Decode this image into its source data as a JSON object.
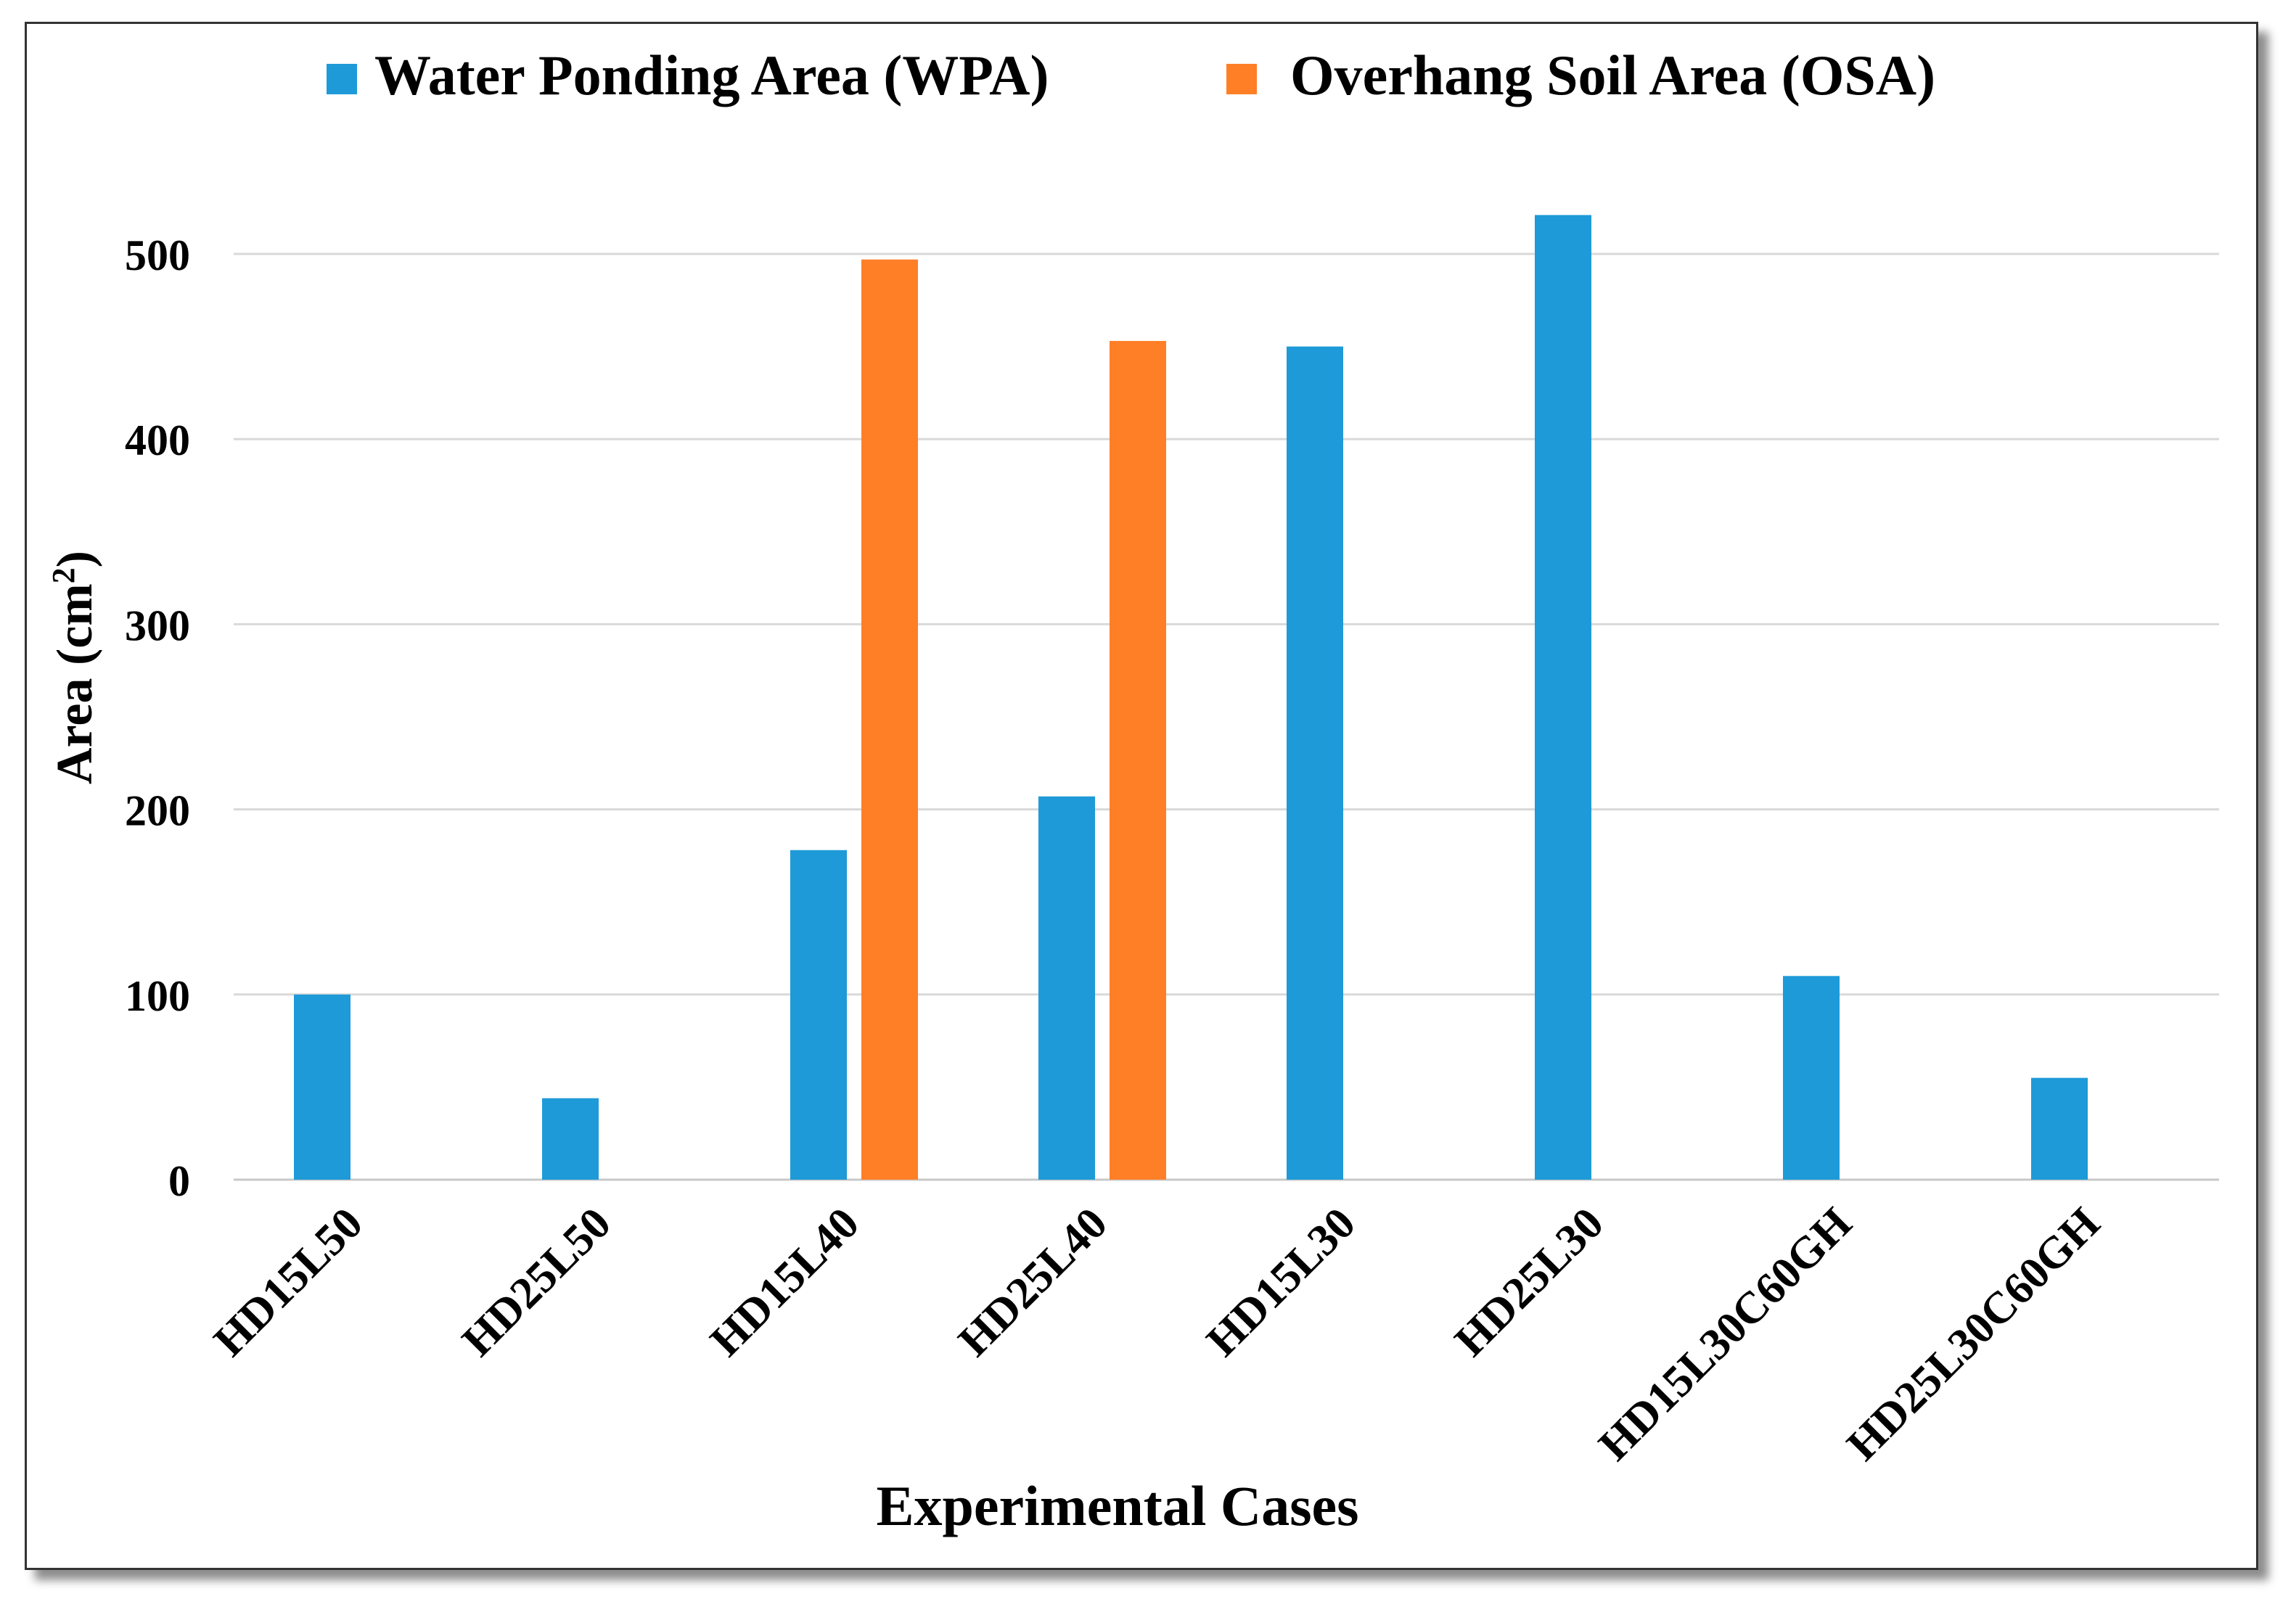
{
  "chart_data": {
    "type": "bar",
    "categories": [
      "HD15L50",
      "HD25L50",
      "HD15L40",
      "HD25L40",
      "HD15L30",
      "HD25L30",
      "HD15L30C60GH",
      "HD25L30C60GH"
    ],
    "series": [
      {
        "name": "Water Ponding Area (WPA)",
        "color": "#1e9ad8",
        "values": [
          100,
          44,
          178,
          207,
          450,
          521,
          110,
          55
        ]
      },
      {
        "name": "Overhang Soil Area (OSA)",
        "color": "#ff7f27",
        "values": [
          0,
          0,
          497,
          453,
          0,
          0,
          0,
          0
        ]
      }
    ],
    "xlabel": "Experimental Cases",
    "ylabel": "Area (cm",
    "ylabel_sup": "2",
    "ylabel_close": ")",
    "ylim": [
      0,
      500
    ],
    "yticks": [
      0,
      100,
      200,
      300,
      400,
      500
    ],
    "grid": true,
    "legend_position": "top"
  }
}
